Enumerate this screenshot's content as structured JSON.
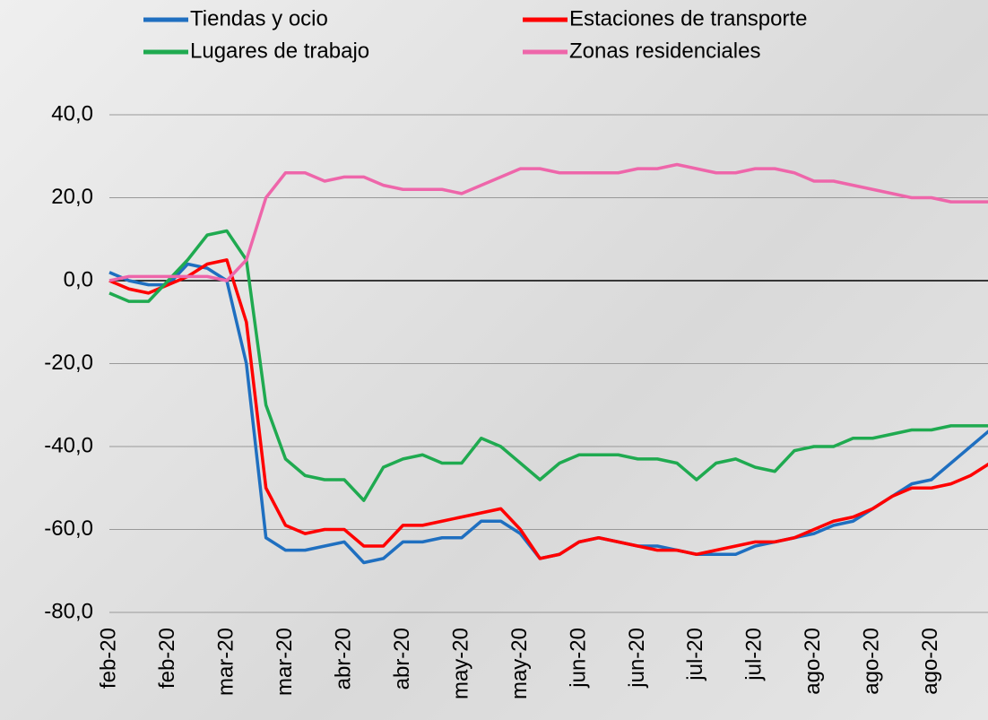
{
  "chart_data": {
    "type": "line",
    "categories": [
      "feb-20",
      null,
      null,
      "feb-20",
      null,
      null,
      "mar-20",
      null,
      null,
      "mar-20",
      null,
      null,
      "abr-20",
      null,
      null,
      "abr-20",
      null,
      null,
      "may-20",
      null,
      null,
      "may-20",
      null,
      null,
      "jun-20",
      null,
      null,
      "jun-20",
      null,
      null,
      "jul-20",
      null,
      null,
      "jul-20",
      null,
      null,
      "ago-20",
      null,
      null,
      "ago-20",
      null,
      null,
      "ago-20",
      null,
      null,
      null
    ],
    "series": [
      {
        "name": "Tiendas y ocio",
        "color": "#1f6fc0",
        "values": [
          2,
          0,
          -1,
          -1,
          4,
          3,
          0,
          -20,
          -62,
          -65,
          -65,
          -64,
          -63,
          -68,
          -67,
          -63,
          -63,
          -62,
          -62,
          -58,
          -58,
          -61,
          -67,
          -66,
          -63,
          -62,
          -63,
          -64,
          -64,
          -65,
          -66,
          -66,
          -66,
          -64,
          -63,
          -62,
          -61,
          -59,
          -58,
          -55,
          -52,
          -49,
          -48,
          -44,
          -40,
          -36
        ]
      },
      {
        "name": "Estaciones de transporte",
        "color": "#ff0000",
        "values": [
          0,
          -2,
          -3,
          -1,
          1,
          4,
          5,
          -10,
          -50,
          -59,
          -61,
          -60,
          -60,
          -64,
          -64,
          -59,
          -59,
          -58,
          -57,
          -56,
          -55,
          -60,
          -67,
          -66,
          -63,
          -62,
          -63,
          -64,
          -65,
          -65,
          -66,
          -65,
          -64,
          -63,
          -63,
          -62,
          -60,
          -58,
          -57,
          -55,
          -52,
          -50,
          -50,
          -49,
          -47,
          -44
        ]
      },
      {
        "name": "Lugares de trabajo",
        "color": "#1faa50",
        "values": [
          -3,
          -5,
          -5,
          0,
          5,
          11,
          12,
          5,
          -30,
          -43,
          -47,
          -48,
          -48,
          -53,
          -45,
          -43,
          -42,
          -44,
          -44,
          -38,
          -40,
          -44,
          -48,
          -44,
          -42,
          -42,
          -42,
          -43,
          -43,
          -44,
          -48,
          -44,
          -43,
          -45,
          -46,
          -41,
          -40,
          -40,
          -38,
          -38,
          -37,
          -36,
          -36,
          -35,
          -35,
          -35
        ]
      },
      {
        "name": "Zonas residenciales",
        "color": "#ee66aa",
        "values": [
          0,
          1,
          1,
          1,
          1,
          1,
          0,
          5,
          20,
          26,
          26,
          24,
          25,
          25,
          23,
          22,
          22,
          22,
          21,
          23,
          25,
          27,
          27,
          26,
          26,
          26,
          26,
          27,
          27,
          28,
          27,
          26,
          26,
          27,
          27,
          26,
          24,
          24,
          23,
          22,
          21,
          20,
          20,
          19,
          19,
          19
        ]
      }
    ],
    "ylim": [
      -80,
      40
    ],
    "yticks": [
      {
        "value": -80,
        "label": "-80,0"
      },
      {
        "value": -60,
        "label": "-60,0"
      },
      {
        "value": -40,
        "label": "-40,0"
      },
      {
        "value": -20,
        "label": "-20,0"
      },
      {
        "value": 0,
        "label": "0,0"
      },
      {
        "value": 20,
        "label": "20,0"
      },
      {
        "value": 40,
        "label": "40,0"
      }
    ],
    "grid": true
  }
}
